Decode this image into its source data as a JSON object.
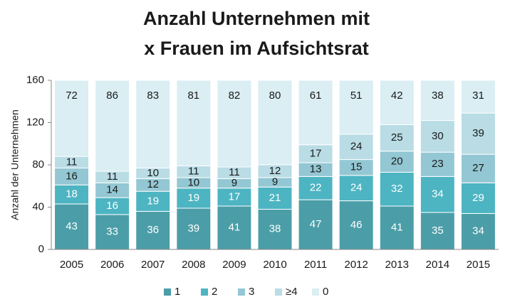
{
  "chart_data": {
    "type": "stacked_bar",
    "title": [
      "Anzahl Unternehmen mit",
      "x Frauen im Aufsichtsrat"
    ],
    "y_label": "Anzahl der Unternehmen",
    "categories": [
      "2005",
      "2006",
      "2007",
      "2008",
      "2009",
      "2010",
      "2011",
      "2012",
      "2013",
      "2014",
      "2015"
    ],
    "series": [
      {
        "name": "1",
        "color": "#4b9ea8",
        "label_color": "#ffffff",
        "values": [
          43,
          33,
          36,
          39,
          41,
          38,
          47,
          46,
          41,
          35,
          34
        ]
      },
      {
        "name": "2",
        "color": "#4db4c2",
        "label_color": "#ffffff",
        "values": [
          18,
          16,
          19,
          19,
          17,
          21,
          22,
          24,
          32,
          34,
          29
        ]
      },
      {
        "name": "3",
        "color": "#93c7d3",
        "label_color": "#1a1a1a",
        "values": [
          16,
          14,
          12,
          10,
          9,
          9,
          13,
          15,
          20,
          23,
          27
        ]
      },
      {
        "name": "≥4",
        "color": "#b9dce5",
        "label_color": "#1a1a1a",
        "values": [
          11,
          11,
          10,
          11,
          11,
          12,
          17,
          24,
          25,
          30,
          39
        ]
      },
      {
        "name": "0",
        "color": "#daeef3",
        "label_color": "#1a1a1a",
        "values": [
          72,
          86,
          83,
          81,
          82,
          80,
          61,
          51,
          42,
          38,
          31
        ]
      }
    ],
    "ylim": [
      0,
      160
    ],
    "yticks": [
      0,
      40,
      80,
      120,
      160
    ],
    "grid": false,
    "legend": "bottom"
  }
}
